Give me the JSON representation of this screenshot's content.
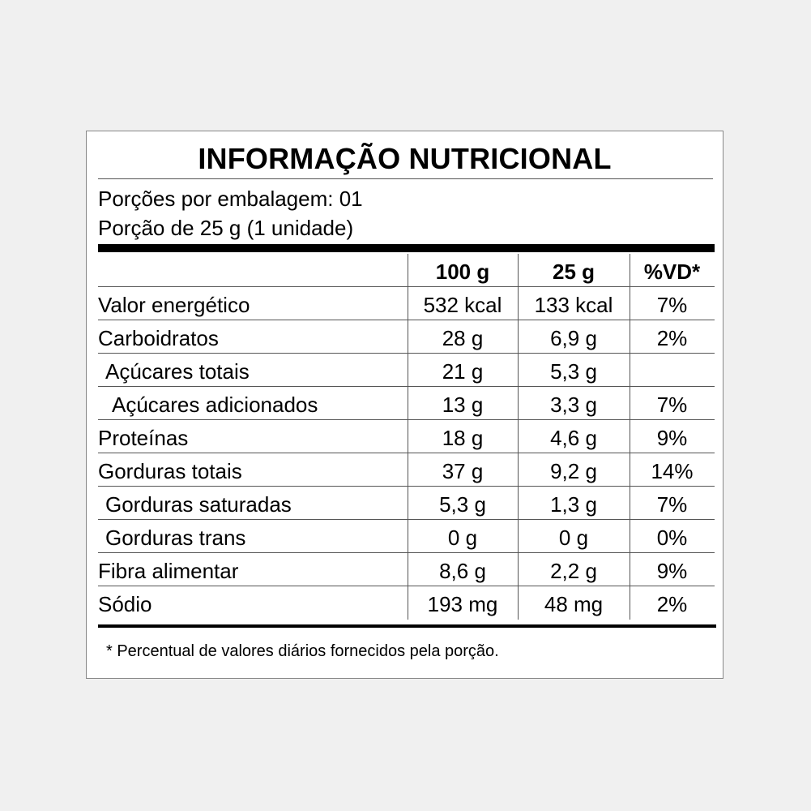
{
  "title": "INFORMAÇÃO NUTRICIONAL",
  "portions_per_package": "Porções por embalagem: 01",
  "portion_size": "Porção de 25 g (1 unidade)",
  "columns": {
    "per100": "100 g",
    "per_portion": "25 g",
    "dv": "%VD*"
  },
  "rows": [
    {
      "label": "Valor energético",
      "per100": "532 kcal",
      "per_portion": "133 kcal",
      "dv": "7%",
      "indent": 0
    },
    {
      "label": "Carboidratos",
      "per100": "28 g",
      "per_portion": "6,9 g",
      "dv": "2%",
      "indent": 0
    },
    {
      "label": "Açúcares totais",
      "per100": "21 g",
      "per_portion": "5,3 g",
      "dv": "",
      "indent": 1
    },
    {
      "label": "Açúcares adicionados",
      "per100": "13 g",
      "per_portion": "3,3 g",
      "dv": "7%",
      "indent": 2
    },
    {
      "label": "Proteínas",
      "per100": "18 g",
      "per_portion": "4,6 g",
      "dv": "9%",
      "indent": 0
    },
    {
      "label": "Gorduras totais",
      "per100": "37 g",
      "per_portion": "9,2 g",
      "dv": "14%",
      "indent": 0
    },
    {
      "label": "Gorduras saturadas",
      "per100": "5,3 g",
      "per_portion": "1,3 g",
      "dv": "7%",
      "indent": 1
    },
    {
      "label": "Gorduras trans",
      "per100": "0 g",
      "per_portion": "0 g",
      "dv": "0%",
      "indent": 1
    },
    {
      "label": "Fibra alimentar",
      "per100": "8,6 g",
      "per_portion": "2,2 g",
      "dv": "9%",
      "indent": 0
    },
    {
      "label": "Sódio",
      "per100": "193 mg",
      "per_portion": "48 mg",
      "dv": "2%",
      "indent": 0
    }
  ],
  "footnote": "* Percentual de valores diários fornecidos pela porção."
}
